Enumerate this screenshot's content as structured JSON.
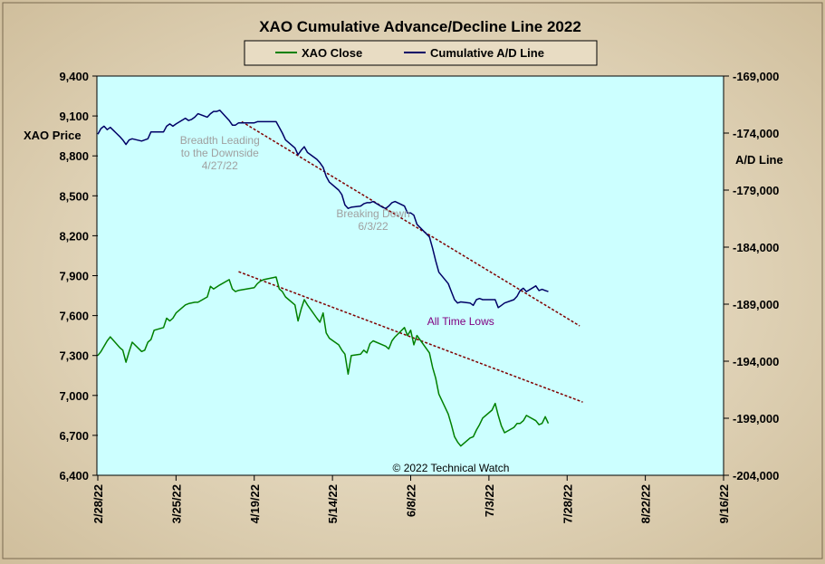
{
  "colors": {
    "plot_bg": "#ccffff",
    "frame_bg": "#e9dcc4",
    "xao_line": "#008000",
    "ad_line": "#000066",
    "trend_line": "#800000",
    "annotation_gray": "#a0a0a0",
    "annotation_purple": "#800080"
  },
  "chart_data": {
    "type": "line",
    "title": "XAO Cumulative Advance/Decline Line 2022",
    "ylabel_left": "XAO Price",
    "ylabel_right": "A/D Line",
    "copyright": "© 2022 Technical Watch",
    "x_ticks": [
      "2/28/22",
      "3/25/22",
      "4/19/22",
      "5/14/22",
      "6/8/22",
      "7/3/22",
      "7/28/22",
      "8/22/22",
      "9/16/22"
    ],
    "xlim": [
      "2022-02-28",
      "2022-09-16"
    ],
    "ylim_left": [
      6400,
      9400
    ],
    "ylim_right": [
      -204000,
      -169000
    ],
    "y_ticks_left": [
      "6,400",
      "6,700",
      "7,000",
      "7,300",
      "7,600",
      "7,900",
      "8,200",
      "8,500",
      "8,800",
      "9,100",
      "9,400"
    ],
    "y_ticks_right": [
      "-204,000",
      "-199,000",
      "-194,000",
      "-189,000",
      "-184,000",
      "-179,000",
      "-174,000",
      "-169,000"
    ],
    "legend": [
      "XAO Close",
      "Cumulative A/D Line"
    ],
    "series": [
      {
        "name": "XAO Close",
        "axis": "left",
        "points": [
          [
            "2022-02-28",
            7300
          ],
          [
            "2022-03-01",
            7330
          ],
          [
            "2022-03-03",
            7410
          ],
          [
            "2022-03-04",
            7440
          ],
          [
            "2022-03-07",
            7360
          ],
          [
            "2022-03-08",
            7340
          ],
          [
            "2022-03-09",
            7250
          ],
          [
            "2022-03-10",
            7330
          ],
          [
            "2022-03-11",
            7400
          ],
          [
            "2022-03-14",
            7330
          ],
          [
            "2022-03-15",
            7340
          ],
          [
            "2022-03-16",
            7400
          ],
          [
            "2022-03-17",
            7420
          ],
          [
            "2022-03-18",
            7490
          ],
          [
            "2022-03-21",
            7510
          ],
          [
            "2022-03-22",
            7580
          ],
          [
            "2022-03-23",
            7560
          ],
          [
            "2022-03-24",
            7580
          ],
          [
            "2022-03-25",
            7620
          ],
          [
            "2022-03-28",
            7680
          ],
          [
            "2022-03-29",
            7690
          ],
          [
            "2022-03-31",
            7700
          ],
          [
            "2022-04-01",
            7700
          ],
          [
            "2022-04-04",
            7740
          ],
          [
            "2022-04-05",
            7820
          ],
          [
            "2022-04-06",
            7800
          ],
          [
            "2022-04-08",
            7830
          ],
          [
            "2022-04-11",
            7870
          ],
          [
            "2022-04-12",
            7800
          ],
          [
            "2022-04-13",
            7780
          ],
          [
            "2022-04-14",
            7790
          ],
          [
            "2022-04-19",
            7810
          ],
          [
            "2022-04-20",
            7840
          ],
          [
            "2022-04-21",
            7860
          ],
          [
            "2022-04-22",
            7870
          ],
          [
            "2022-04-26",
            7890
          ],
          [
            "2022-04-27",
            7800
          ],
          [
            "2022-04-28",
            7780
          ],
          [
            "2022-04-29",
            7740
          ],
          [
            "2022-05-02",
            7680
          ],
          [
            "2022-05-03",
            7560
          ],
          [
            "2022-05-04",
            7650
          ],
          [
            "2022-05-05",
            7720
          ],
          [
            "2022-05-06",
            7680
          ],
          [
            "2022-05-09",
            7580
          ],
          [
            "2022-05-10",
            7550
          ],
          [
            "2022-05-11",
            7620
          ],
          [
            "2022-05-12",
            7470
          ],
          [
            "2022-05-13",
            7430
          ],
          [
            "2022-05-16",
            7380
          ],
          [
            "2022-05-17",
            7340
          ],
          [
            "2022-05-18",
            7310
          ],
          [
            "2022-05-19",
            7160
          ],
          [
            "2022-05-20",
            7300
          ],
          [
            "2022-05-23",
            7310
          ],
          [
            "2022-05-24",
            7340
          ],
          [
            "2022-05-25",
            7320
          ],
          [
            "2022-05-26",
            7390
          ],
          [
            "2022-05-27",
            7410
          ],
          [
            "2022-05-30",
            7380
          ],
          [
            "2022-05-31",
            7370
          ],
          [
            "2022-06-01",
            7350
          ],
          [
            "2022-06-02",
            7410
          ],
          [
            "2022-06-03",
            7440
          ],
          [
            "2022-06-06",
            7510
          ],
          [
            "2022-06-07",
            7450
          ],
          [
            "2022-06-08",
            7490
          ],
          [
            "2022-06-09",
            7380
          ],
          [
            "2022-06-10",
            7450
          ],
          [
            "2022-06-14",
            7320
          ],
          [
            "2022-06-15",
            7210
          ],
          [
            "2022-06-16",
            7130
          ],
          [
            "2022-06-17",
            7010
          ],
          [
            "2022-06-20",
            6860
          ],
          [
            "2022-06-21",
            6780
          ],
          [
            "2022-06-22",
            6690
          ],
          [
            "2022-06-23",
            6650
          ],
          [
            "2022-06-24",
            6620
          ],
          [
            "2022-06-27",
            6680
          ],
          [
            "2022-06-28",
            6690
          ],
          [
            "2022-06-29",
            6740
          ],
          [
            "2022-06-30",
            6780
          ],
          [
            "2022-07-01",
            6830
          ],
          [
            "2022-07-04",
            6890
          ],
          [
            "2022-07-05",
            6940
          ],
          [
            "2022-07-06",
            6850
          ],
          [
            "2022-07-07",
            6770
          ],
          [
            "2022-07-08",
            6720
          ],
          [
            "2022-07-11",
            6760
          ],
          [
            "2022-07-12",
            6790
          ],
          [
            "2022-07-13",
            6790
          ],
          [
            "2022-07-14",
            6810
          ],
          [
            "2022-07-15",
            6850
          ],
          [
            "2022-07-18",
            6810
          ],
          [
            "2022-07-19",
            6780
          ],
          [
            "2022-07-20",
            6790
          ],
          [
            "2022-07-21",
            6840
          ],
          [
            "2022-07-22",
            6790
          ]
        ]
      },
      {
        "name": "Cumulative A/D Line",
        "axis": "right",
        "points": [
          [
            "2022-02-28",
            -174100
          ],
          [
            "2022-03-01",
            -173600
          ],
          [
            "2022-03-02",
            -173400
          ],
          [
            "2022-03-03",
            -173700
          ],
          [
            "2022-03-04",
            -173500
          ],
          [
            "2022-03-07",
            -174300
          ],
          [
            "2022-03-08",
            -174600
          ],
          [
            "2022-03-09",
            -175000
          ],
          [
            "2022-03-10",
            -174600
          ],
          [
            "2022-03-11",
            -174500
          ],
          [
            "2022-03-14",
            -174700
          ],
          [
            "2022-03-15",
            -174600
          ],
          [
            "2022-03-16",
            -174500
          ],
          [
            "2022-03-17",
            -173900
          ],
          [
            "2022-03-18",
            -173900
          ],
          [
            "2022-03-21",
            -173900
          ],
          [
            "2022-03-22",
            -173400
          ],
          [
            "2022-03-23",
            -173200
          ],
          [
            "2022-03-24",
            -173400
          ],
          [
            "2022-03-25",
            -173200
          ],
          [
            "2022-03-28",
            -172700
          ],
          [
            "2022-03-29",
            -172900
          ],
          [
            "2022-03-30",
            -172800
          ],
          [
            "2022-03-31",
            -172600
          ],
          [
            "2022-04-01",
            -172300
          ],
          [
            "2022-04-04",
            -172600
          ],
          [
            "2022-04-05",
            -172300
          ],
          [
            "2022-04-06",
            -172100
          ],
          [
            "2022-04-07",
            -172100
          ],
          [
            "2022-04-08",
            -172000
          ],
          [
            "2022-04-11",
            -172900
          ],
          [
            "2022-04-12",
            -173300
          ],
          [
            "2022-04-13",
            -173300
          ],
          [
            "2022-04-14",
            -173100
          ],
          [
            "2022-04-19",
            -173100
          ],
          [
            "2022-04-20",
            -173000
          ],
          [
            "2022-04-21",
            -173000
          ],
          [
            "2022-04-22",
            -173000
          ],
          [
            "2022-04-26",
            -173000
          ],
          [
            "2022-04-27",
            -173500
          ],
          [
            "2022-04-28",
            -174000
          ],
          [
            "2022-04-29",
            -174600
          ],
          [
            "2022-05-02",
            -175300
          ],
          [
            "2022-05-03",
            -175900
          ],
          [
            "2022-05-04",
            -175500
          ],
          [
            "2022-05-05",
            -175200
          ],
          [
            "2022-05-06",
            -175700
          ],
          [
            "2022-05-09",
            -176300
          ],
          [
            "2022-05-10",
            -176600
          ],
          [
            "2022-05-11",
            -177000
          ],
          [
            "2022-05-12",
            -177800
          ],
          [
            "2022-05-13",
            -178300
          ],
          [
            "2022-05-16",
            -179000
          ],
          [
            "2022-05-17",
            -179400
          ],
          [
            "2022-05-18",
            -180300
          ],
          [
            "2022-05-19",
            -180600
          ],
          [
            "2022-05-20",
            -180500
          ],
          [
            "2022-05-23",
            -180400
          ],
          [
            "2022-05-24",
            -180200
          ],
          [
            "2022-05-25",
            -180100
          ],
          [
            "2022-05-26",
            -180100
          ],
          [
            "2022-05-27",
            -180000
          ],
          [
            "2022-05-30",
            -180500
          ],
          [
            "2022-05-31",
            -180600
          ],
          [
            "2022-06-01",
            -180400
          ],
          [
            "2022-06-02",
            -180100
          ],
          [
            "2022-06-03",
            -180000
          ],
          [
            "2022-06-06",
            -180400
          ],
          [
            "2022-06-07",
            -181000
          ],
          [
            "2022-06-08",
            -181000
          ],
          [
            "2022-06-09",
            -181200
          ],
          [
            "2022-06-10",
            -182000
          ],
          [
            "2022-06-14",
            -183100
          ],
          [
            "2022-06-15",
            -184100
          ],
          [
            "2022-06-16",
            -185200
          ],
          [
            "2022-06-17",
            -186200
          ],
          [
            "2022-06-20",
            -187200
          ],
          [
            "2022-06-21",
            -187900
          ],
          [
            "2022-06-22",
            -188600
          ],
          [
            "2022-06-23",
            -188900
          ],
          [
            "2022-06-24",
            -188800
          ],
          [
            "2022-06-27",
            -188900
          ],
          [
            "2022-06-28",
            -189100
          ],
          [
            "2022-06-29",
            -188600
          ],
          [
            "2022-06-30",
            -188500
          ],
          [
            "2022-07-01",
            -188600
          ],
          [
            "2022-07-04",
            -188600
          ],
          [
            "2022-07-05",
            -188600
          ],
          [
            "2022-07-06",
            -189300
          ],
          [
            "2022-07-07",
            -189100
          ],
          [
            "2022-07-08",
            -188900
          ],
          [
            "2022-07-11",
            -188600
          ],
          [
            "2022-07-12",
            -188300
          ],
          [
            "2022-07-13",
            -187800
          ],
          [
            "2022-07-14",
            -187600
          ],
          [
            "2022-07-15",
            -187900
          ],
          [
            "2022-07-18",
            -187400
          ],
          [
            "2022-07-19",
            -187800
          ],
          [
            "2022-07-20",
            -187700
          ],
          [
            "2022-07-21",
            -187800
          ],
          [
            "2022-07-22",
            -187900
          ]
        ]
      }
    ],
    "trend_lines": [
      {
        "axis": "right",
        "from": [
          "2022-04-15",
          -173000
        ],
        "to": [
          "2022-08-01",
          -190900
        ]
      },
      {
        "axis": "left",
        "from": [
          "2022-04-14",
          7930
        ],
        "to": [
          "2022-08-02",
          6950
        ]
      }
    ],
    "annotations": [
      {
        "text": [
          "Breadth Leading",
          "to the Downside",
          "4/27/22"
        ],
        "at": [
          "2022-04-08",
          8890
        ],
        "color": "gray"
      },
      {
        "text": [
          "Breaking  Down",
          "6/3/22"
        ],
        "at": [
          "2022-05-27",
          8340
        ],
        "color": "gray"
      },
      {
        "text": [
          "All Time Lows"
        ],
        "at": [
          "2022-06-24",
          7530
        ],
        "color": "purple"
      }
    ]
  }
}
